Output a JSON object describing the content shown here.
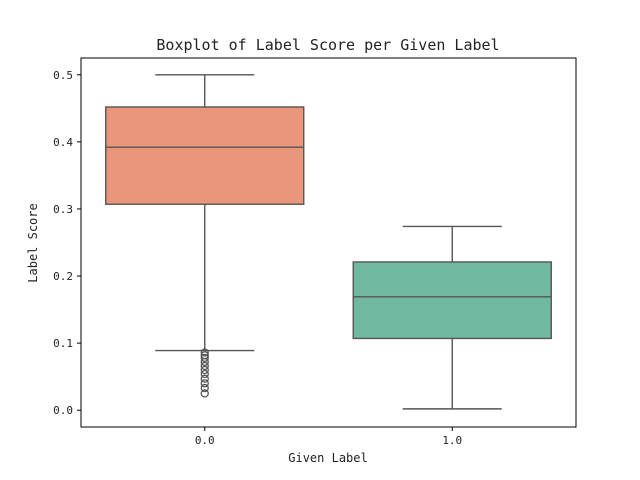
{
  "chart_data": {
    "type": "boxplot",
    "title": "Boxplot of Label Score per Given Label",
    "xlabel": "Given Label",
    "ylabel": "Label Score",
    "ylim": [
      -0.025,
      0.525
    ],
    "yticks": [
      0.0,
      0.1,
      0.2,
      0.3,
      0.4,
      0.5
    ],
    "ytick_labels": [
      "0.0",
      "0.1",
      "0.2",
      "0.3",
      "0.4",
      "0.5"
    ],
    "categories": [
      "0.0",
      "1.0"
    ],
    "grid": false,
    "boxes": [
      {
        "category": "0.0",
        "whisker_low": 0.089,
        "q1": 0.307,
        "median": 0.392,
        "q3": 0.452,
        "whisker_high": 0.5,
        "color": "#E9967A",
        "outliers": [
          0.025,
          0.033,
          0.04,
          0.047,
          0.054,
          0.06,
          0.066,
          0.072,
          0.078,
          0.082,
          0.086
        ]
      },
      {
        "category": "1.0",
        "whisker_low": 0.002,
        "q1": 0.107,
        "median": 0.169,
        "q3": 0.221,
        "whisker_high": 0.274,
        "color": "#71B8A0",
        "outliers": []
      }
    ],
    "line_color": "#555555"
  }
}
